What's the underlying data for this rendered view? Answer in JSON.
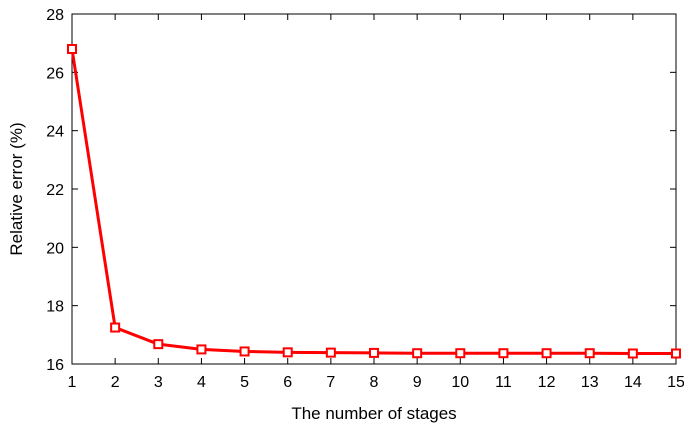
{
  "chart_data": {
    "type": "line",
    "title": "",
    "xlabel": "The number of stages",
    "ylabel": "Relative error (%)",
    "xlim": [
      1,
      15
    ],
    "ylim": [
      16,
      28
    ],
    "xticks": [
      1,
      2,
      3,
      4,
      5,
      6,
      7,
      8,
      9,
      10,
      11,
      12,
      13,
      14,
      15
    ],
    "yticks": [
      16,
      18,
      20,
      22,
      24,
      26,
      28
    ],
    "grid": false,
    "legend": "none",
    "series": [
      {
        "color": "#ff0000",
        "marker": "square",
        "x": [
          1,
          2,
          3,
          4,
          5,
          6,
          7,
          8,
          9,
          10,
          11,
          12,
          13,
          14,
          15
        ],
        "y": [
          26.8,
          17.25,
          16.68,
          16.5,
          16.43,
          16.4,
          16.39,
          16.38,
          16.37,
          16.37,
          16.37,
          16.37,
          16.37,
          16.36,
          16.36
        ]
      }
    ]
  }
}
